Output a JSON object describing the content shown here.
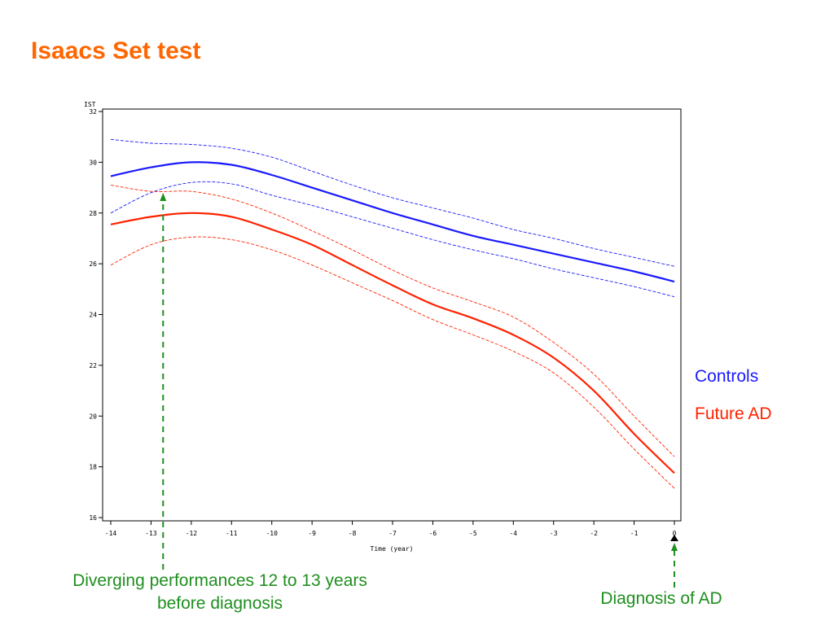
{
  "title": "Isaacs Set test",
  "legend": {
    "controls": "Controls",
    "future_ad": "Future AD"
  },
  "annotations": {
    "diverging_line1": "Diverging performances 12 to 13 years",
    "diverging_line2": "before diagnosis",
    "diagnosis": "Diagnosis of AD"
  },
  "colors": {
    "title": "#ff6600",
    "controls": "#1a1aff",
    "future_ad": "#ff2200",
    "annotation": "#1f8f1f"
  },
  "chart_data": {
    "type": "line",
    "title": "Isaacs Set test",
    "xlabel": "Time (year)",
    "ylabel": "IST",
    "xlim": [
      -14,
      0
    ],
    "ylim": [
      16,
      32
    ],
    "xticks": [
      -14,
      -13,
      -12,
      -11,
      -10,
      -9,
      -8,
      -7,
      -6,
      -5,
      -4,
      -3,
      -2,
      -1,
      0
    ],
    "yticks": [
      16,
      18,
      20,
      22,
      24,
      26,
      28,
      30,
      32
    ],
    "x": [
      -14,
      -13,
      -12,
      -11,
      -10,
      -9,
      -8,
      -7,
      -6,
      -5,
      -4,
      -3,
      -2,
      -1,
      0
    ],
    "series": [
      {
        "name": "Controls",
        "role": "mean",
        "color": "#1a1aff",
        "values": [
          29.45,
          29.8,
          30.0,
          29.9,
          29.5,
          29.0,
          28.5,
          28.0,
          27.55,
          27.1,
          26.75,
          26.4,
          26.05,
          25.7,
          25.3
        ]
      },
      {
        "name": "Controls upper CI",
        "role": "ci",
        "color": "#1a1aff",
        "values": [
          30.9,
          30.75,
          30.7,
          30.55,
          30.2,
          29.65,
          29.1,
          28.6,
          28.2,
          27.8,
          27.35,
          27.0,
          26.6,
          26.25,
          25.9
        ]
      },
      {
        "name": "Controls lower CI",
        "role": "ci",
        "color": "#1a1aff",
        "values": [
          28.0,
          28.8,
          29.2,
          29.15,
          28.7,
          28.3,
          27.85,
          27.4,
          26.95,
          26.55,
          26.2,
          25.8,
          25.45,
          25.1,
          24.7
        ]
      },
      {
        "name": "Future AD",
        "role": "mean",
        "color": "#ff2200",
        "values": [
          27.55,
          27.85,
          28.0,
          27.85,
          27.35,
          26.75,
          25.95,
          25.15,
          24.4,
          23.85,
          23.2,
          22.3,
          21.0,
          19.3,
          17.75
        ]
      },
      {
        "name": "Future AD upper CI",
        "role": "ci",
        "color": "#ff2200",
        "values": [
          29.1,
          28.85,
          28.85,
          28.55,
          28.0,
          27.3,
          26.55,
          25.75,
          25.05,
          24.5,
          23.9,
          22.9,
          21.65,
          20.0,
          18.4
        ]
      },
      {
        "name": "Future AD lower CI",
        "role": "ci",
        "color": "#ff2200",
        "values": [
          25.95,
          26.75,
          27.05,
          26.95,
          26.55,
          25.95,
          25.25,
          24.55,
          23.8,
          23.2,
          22.55,
          21.7,
          20.35,
          18.7,
          17.15
        ]
      }
    ]
  }
}
